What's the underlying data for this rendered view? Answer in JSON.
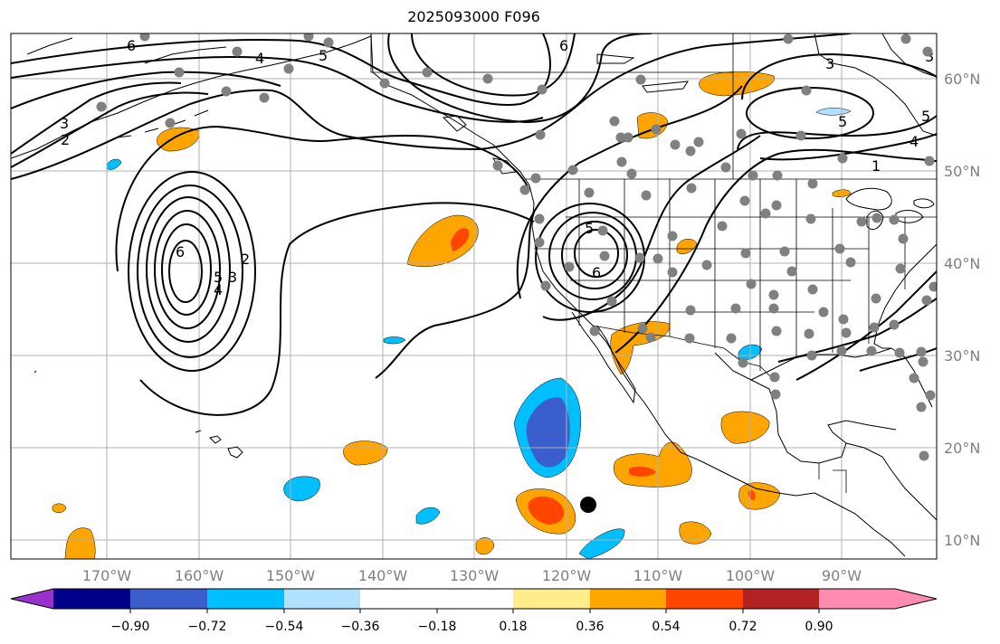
{
  "title": "2025093000 F096",
  "longitude_labels": [
    "170°W",
    "160°W",
    "150°W",
    "140°W",
    "130°W",
    "120°W",
    "110°W",
    "100°W",
    "90°W"
  ],
  "latitude_labels": [
    "60°N",
    "50°N",
    "40°N",
    "30°N",
    "20°N",
    "10°N"
  ],
  "colorbar": {
    "ticks": [
      "−0.90",
      "−0.72",
      "−0.54",
      "−0.36",
      "−0.18",
      "0.18",
      "0.36",
      "0.54",
      "0.72",
      "0.90"
    ],
    "colors": [
      "#9932CC",
      "#00008B",
      "#3A5FCD",
      "#00BFFF",
      "#B0E2FF",
      "#FFFFFF",
      "#FFEC8B",
      "#FFA500",
      "#FF4500",
      "#B22222",
      "#FF8BB1"
    ]
  },
  "contour_labels": [
    "6",
    "4",
    "5",
    "6",
    "3",
    "2",
    "6",
    "5",
    "4",
    "3",
    "2",
    "5",
    "6",
    "3",
    "5",
    "1",
    "4",
    "5",
    "3"
  ],
  "colors": {
    "land_outline": "#000000",
    "grid": "#b0b0b0",
    "station_dot": "#808080",
    "marker": "#000000"
  }
}
